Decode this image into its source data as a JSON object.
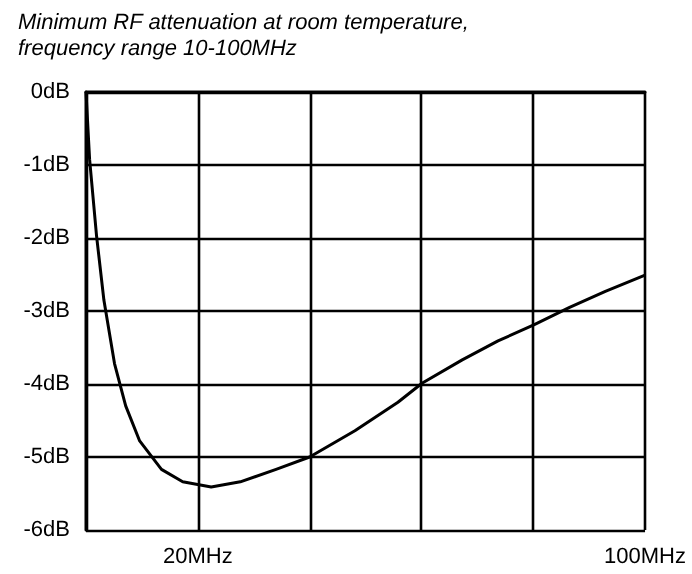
{
  "chart_data": {
    "type": "line",
    "title": "Minimum RF attenuation at room temperature,\nfrequency range 10-100MHz",
    "x": [
      0,
      0.64,
      1.9,
      3.2,
      5.1,
      7.1,
      9.6,
      13.5,
      17.3,
      22.4,
      27.6,
      34,
      40,
      48.1,
      55.8,
      60.1,
      67.3,
      73.7,
      80.1,
      86.5,
      92.9,
      100
    ],
    "series": [
      {
        "color": "#000000",
        "values": [
          0,
          -0.92,
          -1.98,
          -2.85,
          -3.72,
          -4.3,
          -4.78,
          -5.17,
          -5.34,
          -5.41,
          -5.34,
          -5.17,
          -5.0,
          -4.64,
          -4.25,
          -3.99,
          -3.67,
          -3.41,
          -3.19,
          -2.95,
          -2.73,
          -2.51
        ]
      }
    ],
    "xlim": [
      0,
      100
    ],
    "xticks": [
      {
        "value": 0,
        "label": null
      },
      {
        "value": 20,
        "label": "20MHz"
      },
      {
        "value": 40,
        "label": null
      },
      {
        "value": 60,
        "label": null
      },
      {
        "value": 80,
        "label": null
      },
      {
        "value": 100,
        "label": "100MHz"
      }
    ],
    "ylim": [
      -6,
      0
    ],
    "yticks": [
      {
        "value": -6,
        "label": "-6dB"
      },
      {
        "value": -5,
        "label": "-5dB"
      },
      {
        "value": -4,
        "label": "-4dB"
      },
      {
        "value": -3,
        "label": "-3dB"
      },
      {
        "value": -2,
        "label": "-2dB"
      },
      {
        "value": -1,
        "label": "-1dB"
      },
      {
        "value": 0,
        "label": "0dB"
      }
    ],
    "grid": true,
    "marker": "none",
    "line_style": "solid"
  }
}
